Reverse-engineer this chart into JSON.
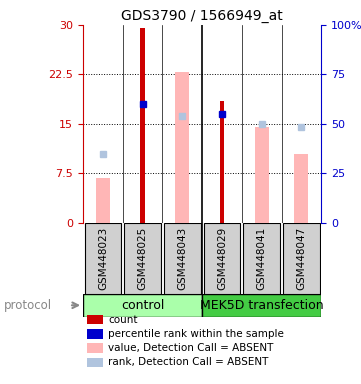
{
  "title": "GDS3790 / 1566949_at",
  "samples": [
    "GSM448023",
    "GSM448025",
    "GSM448043",
    "GSM448029",
    "GSM448041",
    "GSM448047"
  ],
  "count_values": [
    null,
    29.5,
    null,
    18.5,
    null,
    null
  ],
  "rank_values": [
    null,
    18.0,
    null,
    16.5,
    null,
    null
  ],
  "absent_value_values": [
    6.8,
    null,
    22.8,
    null,
    14.5,
    10.5
  ],
  "absent_rank_values": [
    10.5,
    null,
    16.2,
    null,
    15.0,
    14.5
  ],
  "count_color": "#cc0000",
  "rank_color": "#0000cc",
  "absent_value_color": "#ffb6b6",
  "absent_rank_color": "#b0c4de",
  "ylim_left": [
    0,
    30
  ],
  "ylim_right": [
    0,
    100
  ],
  "yticks_left": [
    0,
    7.5,
    15,
    22.5,
    30
  ],
  "yticks_right": [
    0,
    25,
    50,
    75,
    100
  ],
  "ytick_labels_left": [
    "0",
    "7.5",
    "15",
    "22.5",
    "30"
  ],
  "ytick_labels_right": [
    "0",
    "25",
    "50",
    "75",
    "100%"
  ],
  "left_axis_color": "#cc0000",
  "right_axis_color": "#0000cc",
  "label_bg": "#d0d0d0",
  "control_color": "#aaffaa",
  "mek_color": "#44cc44",
  "legend_items": [
    {
      "color": "#cc0000",
      "label": "count"
    },
    {
      "color": "#0000cc",
      "label": "percentile rank within the sample"
    },
    {
      "color": "#ffb6b6",
      "label": "value, Detection Call = ABSENT"
    },
    {
      "color": "#b0c4de",
      "label": "rank, Detection Call = ABSENT"
    }
  ],
  "narrow_bar_width": 0.12,
  "wide_bar_width": 0.35
}
